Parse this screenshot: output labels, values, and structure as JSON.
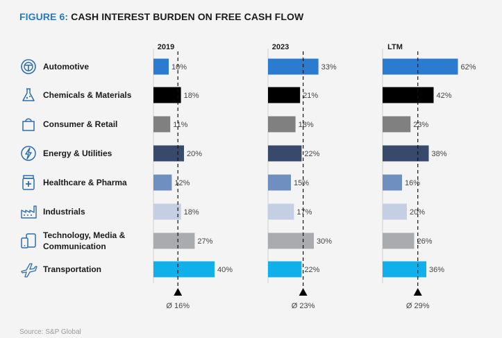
{
  "title_prefix": "FIGURE 6:",
  "title_main": "CASH INTEREST BURDEN ON FREE CASH FLOW",
  "source": "Source: S&P Global",
  "colors": {
    "Automotive": "#2b7bce",
    "Chemicals & Materials": "#000000",
    "Consumer & Retail": "#808080",
    "Energy & Utilities": "#384a6b",
    "Healthcare & Pharma": "#6f8fc0",
    "Industrials": "#c5cfe3",
    "Technology, Media & Communication": "#a9abaf",
    "Transportation": "#10b0ea"
  },
  "categories": [
    {
      "label": "Automotive",
      "icon": "steering-wheel-icon"
    },
    {
      "label": "Chemicals & Materials",
      "icon": "flask-icon"
    },
    {
      "label": "Consumer & Retail",
      "icon": "shopping-bag-icon"
    },
    {
      "label": "Energy & Utilities",
      "icon": "energy-icon"
    },
    {
      "label": "Healthcare & Pharma",
      "icon": "medicine-bottle-icon"
    },
    {
      "label": "Industrials",
      "icon": "factory-icon"
    },
    {
      "label": "Technology, Media & Communication",
      "label_lines": [
        "Technology, Media &",
        "Communication"
      ],
      "icon": "devices-icon"
    },
    {
      "label": "Transportation",
      "icon": "airplane-icon"
    }
  ],
  "chart_data": {
    "type": "bar",
    "orientation": "horizontal",
    "categories": [
      "Automotive",
      "Chemicals & Materials",
      "Consumer & Retail",
      "Energy & Utilities",
      "Healthcare & Pharma",
      "Industrials",
      "Technology, Media & Communication",
      "Transportation"
    ],
    "value_suffix": "%",
    "series": [
      {
        "name": "2019",
        "values": [
          10,
          18,
          11,
          20,
          12,
          18,
          27,
          40
        ],
        "average": 16,
        "average_label": "Ø 16%"
      },
      {
        "name": "2023",
        "values": [
          33,
          21,
          18,
          22,
          15,
          17,
          30,
          22
        ],
        "average": 23,
        "average_label": "Ø 23%"
      },
      {
        "name": "LTM",
        "values": [
          62,
          42,
          23,
          38,
          16,
          20,
          26,
          36
        ],
        "average": 29,
        "average_label": "Ø 29%"
      }
    ]
  }
}
